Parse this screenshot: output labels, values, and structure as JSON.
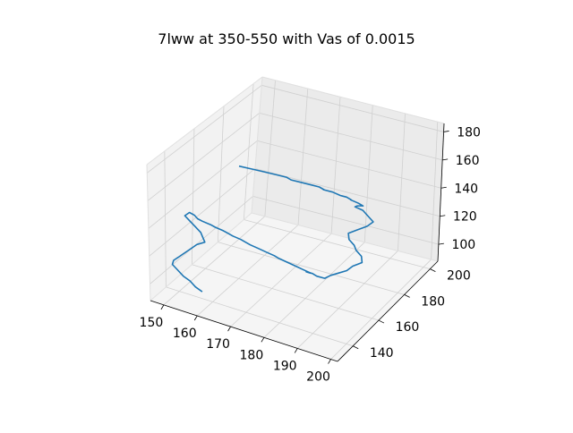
{
  "chart_data": {
    "type": "line",
    "projection": "3d",
    "title": "7lww at 350-550 with Vas of 0.0015",
    "xlabel": "",
    "ylabel": "",
    "zlabel": "",
    "x_ticks": [
      "150",
      "160",
      "170",
      "180",
      "190",
      "200"
    ],
    "y_ticks": [
      "140",
      "160",
      "180",
      "200"
    ],
    "z_ticks": [
      "100",
      "120",
      "140",
      "160",
      "180"
    ],
    "grid": true,
    "series": [
      {
        "color": "#1f77b4",
        "points_note": "3D trajectory (x, y, z) – approximate random-walk path",
        "x": [
          164,
          166,
          168,
          170,
          172,
          174,
          175,
          177,
          179,
          181,
          182,
          181,
          183,
          185,
          186,
          187,
          186,
          188,
          189,
          188,
          186,
          185,
          187,
          189,
          191,
          190,
          188,
          186,
          187,
          189,
          190,
          192,
          193,
          191,
          190,
          188,
          186,
          185,
          183,
          182,
          181,
          183,
          184,
          182,
          180,
          178,
          176,
          175,
          173,
          171,
          169,
          168,
          167,
          165,
          164,
          163,
          161,
          160,
          158,
          157,
          156,
          155,
          154,
          156,
          158,
          160,
          161,
          162,
          160,
          159,
          158,
          157,
          156,
          155,
          155,
          157,
          159,
          161,
          163,
          165
        ],
        "y": [
          150,
          152,
          154,
          156,
          158,
          160,
          161,
          163,
          165,
          167,
          168,
          170,
          172,
          173,
          175,
          176,
          178,
          179,
          180,
          182,
          183,
          184,
          185,
          184,
          183,
          181,
          179,
          177,
          175,
          174,
          173,
          172,
          170,
          168,
          166,
          165,
          164,
          162,
          161,
          160,
          158,
          156,
          154,
          153,
          152,
          151,
          150,
          149,
          148,
          147,
          146,
          145,
          144,
          143,
          142,
          141,
          140,
          139,
          138,
          137,
          137,
          136,
          135,
          134,
          133,
          132,
          131,
          130,
          129,
          128,
          127,
          126,
          125,
          124,
          123,
          122,
          121,
          121,
          120,
          120
        ],
        "z": [
          176,
          174,
          172,
          170,
          168,
          166,
          164,
          162,
          160,
          158,
          156,
          154,
          152,
          150,
          148,
          146,
          144,
          142,
          140,
          138,
          136,
          134,
          132,
          130,
          128,
          126,
          124,
          122,
          120,
          118,
          116,
          114,
          112,
          110,
          108,
          106,
          104,
          103,
          104,
          106,
          108,
          110,
          112,
          114,
          116,
          118,
          120,
          122,
          124,
          126,
          128,
          130,
          132,
          134,
          136,
          138,
          140,
          142,
          144,
          146,
          148,
          150,
          148,
          146,
          144,
          142,
          140,
          138,
          136,
          134,
          132,
          130,
          128,
          126,
          124,
          122,
          120,
          118,
          116,
          114
        ]
      }
    ]
  }
}
